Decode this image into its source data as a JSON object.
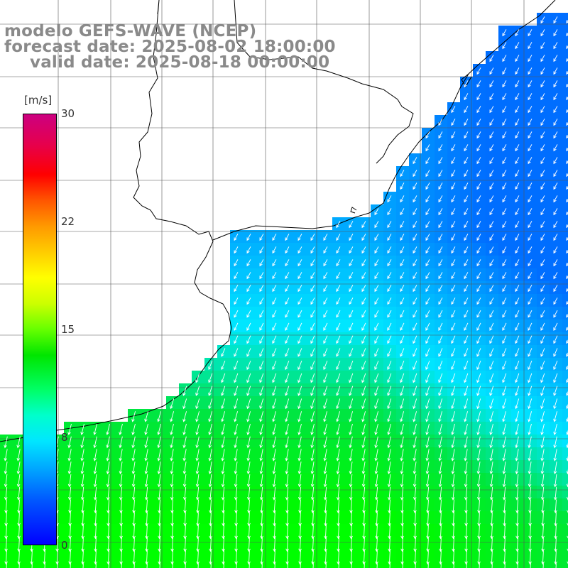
{
  "title": {
    "line1": "modelo GEFS-WAVE (NCEP)",
    "line2": "forecast date: 2025-08-02 18:00:00",
    "line3": "valid date: 2025-08-18 00:00:00"
  },
  "colorbar": {
    "unit": "[m/s]",
    "ticks": [
      "30",
      "22",
      "15",
      "8",
      "0"
    ],
    "min": 0,
    "max": 30
  },
  "map": {
    "field": "wind speed",
    "grid_lines": true,
    "land_color": "#ffffff",
    "coastline_color": "#000000",
    "arrow_color": "#ffffff",
    "speed_range_shown": [
      6,
      14
    ]
  }
}
